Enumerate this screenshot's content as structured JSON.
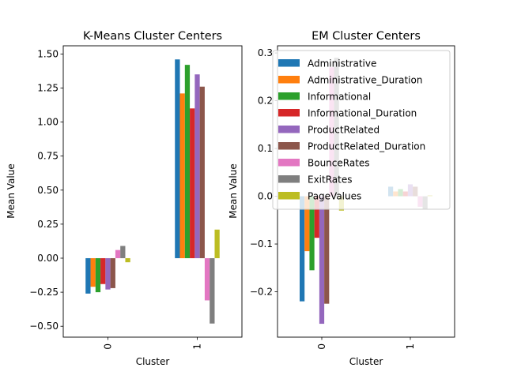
{
  "chart_data": [
    {
      "type": "bar",
      "title": "K-Means Cluster Centers",
      "xlabel": "Cluster",
      "ylabel": "Mean Value",
      "categories": [
        "0",
        "1"
      ],
      "ylim": [
        -0.58,
        1.56
      ],
      "yticks": [
        -0.5,
        -0.25,
        0.0,
        0.25,
        0.5,
        0.75,
        1.0,
        1.25,
        1.5
      ],
      "ytick_labels": [
        "−0.50",
        "−0.25",
        "0.00",
        "0.25",
        "0.50",
        "0.75",
        "1.00",
        "1.25",
        "1.50"
      ],
      "legend": false,
      "series": [
        {
          "name": "Administrative",
          "values": [
            -0.26,
            1.46
          ]
        },
        {
          "name": "Administrative_Duration",
          "values": [
            -0.21,
            1.21
          ]
        },
        {
          "name": "Informational",
          "values": [
            -0.25,
            1.42
          ]
        },
        {
          "name": "Informational_Duration",
          "values": [
            -0.19,
            1.1
          ]
        },
        {
          "name": "ProductRelated",
          "values": [
            -0.23,
            1.35
          ]
        },
        {
          "name": "ProductRelated_Duration",
          "values": [
            -0.22,
            1.26
          ]
        },
        {
          "name": "BounceRates",
          "values": [
            0.06,
            -0.31
          ]
        },
        {
          "name": "ExitRates",
          "values": [
            0.09,
            -0.48
          ]
        },
        {
          "name": "PageValues",
          "values": [
            -0.03,
            0.21
          ]
        }
      ]
    },
    {
      "type": "bar",
      "title": "EM Cluster Centers",
      "xlabel": "Cluster",
      "ylabel": "Mean Value",
      "categories": [
        "0",
        "1"
      ],
      "ylim": [
        -0.295,
        0.315
      ],
      "yticks": [
        -0.2,
        -0.1,
        0.0,
        0.1,
        0.2,
        0.3
      ],
      "ytick_labels": [
        "−0.2",
        "−0.1",
        "0.0",
        "0.1",
        "0.2",
        "0.3"
      ],
      "legend": true,
      "legend_position": "upper right",
      "series": [
        {
          "name": "Administrative",
          "values": [
            -0.22,
            0.02
          ]
        },
        {
          "name": "Administrative_Duration",
          "values": [
            -0.115,
            0.01
          ]
        },
        {
          "name": "Informational",
          "values": [
            -0.155,
            0.015
          ]
        },
        {
          "name": "Informational_Duration",
          "values": [
            -0.087,
            0.01
          ]
        },
        {
          "name": "ProductRelated",
          "values": [
            -0.267,
            0.025
          ]
        },
        {
          "name": "ProductRelated_Duration",
          "values": [
            -0.225,
            0.02
          ]
        },
        {
          "name": "BounceRates",
          "values": [
            0.27,
            -0.022
          ]
        },
        {
          "name": "ExitRates",
          "values": [
            0.29,
            -0.027
          ]
        },
        {
          "name": "PageValues",
          "values": [
            -0.03,
            0.002
          ]
        }
      ]
    }
  ],
  "colors": [
    "#1f77b4",
    "#ff7f0e",
    "#2ca02c",
    "#d62728",
    "#9467bd",
    "#8c564b",
    "#e377c2",
    "#7f7f7f",
    "#bcbd22"
  ]
}
